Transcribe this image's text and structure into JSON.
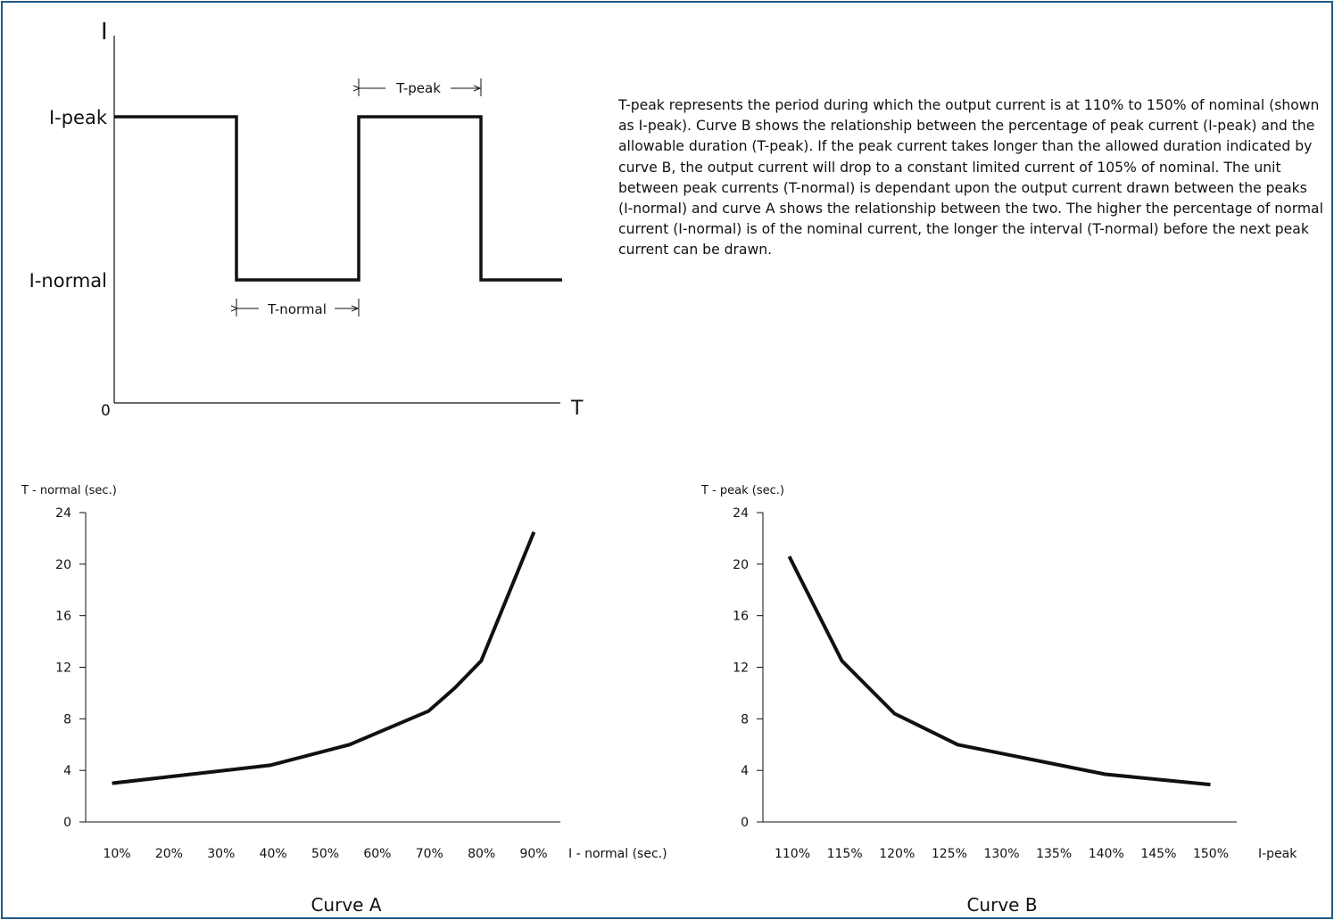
{
  "colors": {
    "frame": "#1f5a85",
    "line": "#111111",
    "text": "#111111"
  },
  "waveform": {
    "y_axis_label": "I",
    "x_axis_label": "T",
    "origin_label": "0",
    "level_peak_label": "I-peak",
    "level_normal_label": "I-normal",
    "t_peak_label": "T-peak",
    "t_normal_label": "T-normal"
  },
  "description": "T-peak represents the period during which the output current is at 110% to 150% of nominal (shown as I-peak). Curve B shows the relationship between the percentage of peak current (I-peak) and the allowable duration (T-peak). If the peak current takes longer than the allowed duration indicated by curve B, the output current will drop to a constant limited current of 105% of nominal. The unit between peak currents (T-normal) is dependant upon the output current drawn between the peaks (I-normal) and curve A shows the relationship between the two. The higher the percentage of normal current (I-normal) is of the nominal current, the longer the interval (T-normal) before the next peak current can be drawn.",
  "chart_data": [
    {
      "type": "line",
      "caption": "Curve A",
      "ylabel": "T - normal (sec.)",
      "xlabel": "I - normal (sec.)",
      "categories": [
        "10%",
        "20%",
        "30%",
        "40%",
        "50%",
        "60%",
        "70%",
        "80%",
        "90%"
      ],
      "yticks": [
        0,
        4,
        8,
        12,
        16,
        20,
        24
      ],
      "ylim": [
        0,
        24
      ],
      "xlim": [
        5,
        95
      ],
      "grid": false,
      "series": [
        {
          "x": [
            10,
            25,
            40,
            55,
            70,
            75,
            80,
            90
          ],
          "values": [
            3.0,
            3.7,
            4.4,
            6.0,
            8.6,
            10.4,
            12.5,
            22.5
          ]
        }
      ]
    },
    {
      "type": "line",
      "caption": "Curve B",
      "ylabel": "T - peak (sec.)",
      "xlabel": "I-peak",
      "categories": [
        "110%",
        "115%",
        "120%",
        "125%",
        "130%",
        "135%",
        "140%",
        "145%",
        "150%"
      ],
      "yticks": [
        0,
        4,
        8,
        12,
        16,
        20,
        24
      ],
      "ylim": [
        0,
        24
      ],
      "xlim": [
        107.5,
        152.5
      ],
      "grid": false,
      "series": [
        {
          "x": [
            110,
            115,
            120,
            126,
            140,
            150
          ],
          "values": [
            20.6,
            12.5,
            8.4,
            6.0,
            3.7,
            2.9
          ]
        }
      ]
    }
  ]
}
